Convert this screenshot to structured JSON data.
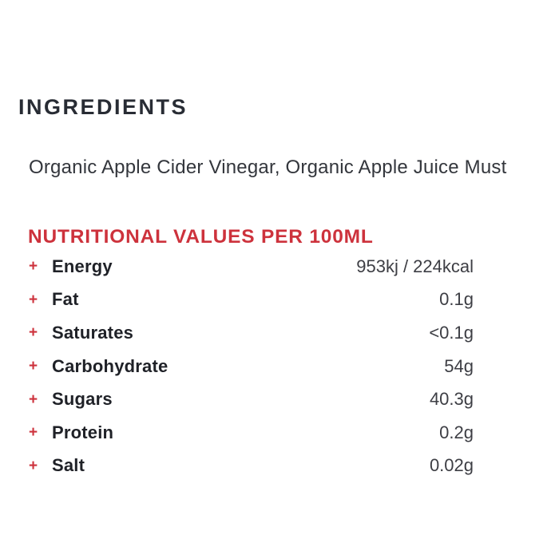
{
  "ingredients": {
    "heading": "INGREDIENTS",
    "text": "Organic Apple Cider Vinegar, Organic Apple Juice Must"
  },
  "nutrition": {
    "heading": "NUTRITIONAL VALUES PER 100ML",
    "bullet": "+",
    "rows": [
      {
        "label": "Energy",
        "value": "953kj / 224kcal"
      },
      {
        "label": "Fat",
        "value": "0.1g"
      },
      {
        "label": "Saturates",
        "value": "<0.1g"
      },
      {
        "label": "Carbohydrate",
        "value": "54g"
      },
      {
        "label": "Sugars",
        "value": "40.3g"
      },
      {
        "label": "Protein",
        "value": "0.2g"
      },
      {
        "label": "Salt",
        "value": "0.02g"
      }
    ]
  },
  "colors": {
    "accent_red": "#cd323c",
    "heading_dark": "#282c34",
    "body_text": "#33363c",
    "value_text": "#3d3e44",
    "background": "#ffffff"
  }
}
